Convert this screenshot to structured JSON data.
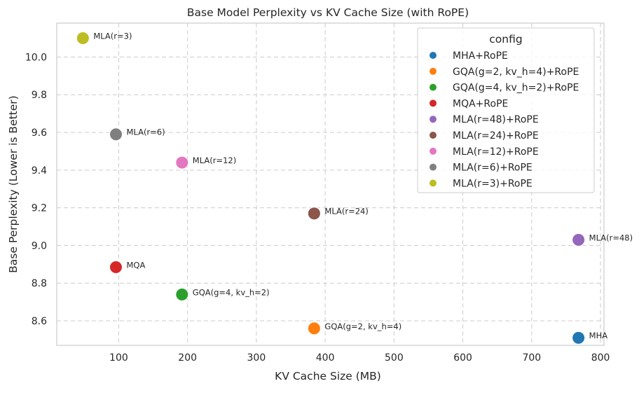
{
  "chart_data": {
    "type": "scatter",
    "title": "Base Model Perplexity vs KV Cache Size (with RoPE)",
    "xlabel": "KV Cache Size (MB)",
    "ylabel": "Base Perplexity (Lower is Better)",
    "xlim": [
      10,
      805
    ],
    "ylim": [
      8.47,
      10.18
    ],
    "xticks": [
      100,
      200,
      300,
      400,
      500,
      600,
      700,
      800
    ],
    "yticks": [
      8.6,
      8.8,
      9.0,
      9.2,
      9.4,
      9.6,
      9.8,
      10.0
    ],
    "xtick_labels": [
      "100",
      "200",
      "300",
      "400",
      "500",
      "600",
      "700",
      "800"
    ],
    "ytick_labels": [
      "8.6",
      "8.8",
      "9.0",
      "9.2",
      "9.4",
      "9.6",
      "9.8",
      "10.0"
    ],
    "grid": true,
    "legend_title": "config",
    "legend_placement": "top-right",
    "series": [
      {
        "name": "MHA+RoPE",
        "color": "#1f77b4",
        "x": 768,
        "y": 8.51,
        "label": "MHA"
      },
      {
        "name": "GQA(g=2, kv_h=4)+RoPE",
        "color": "#ff7f0e",
        "x": 384,
        "y": 8.56,
        "label": "GQA(g=2, kv_h=4)"
      },
      {
        "name": "GQA(g=4, kv_h=2)+RoPE",
        "color": "#2ca02c",
        "x": 192,
        "y": 8.74,
        "label": "GQA(g=4, kv_h=2)"
      },
      {
        "name": "MQA+RoPE",
        "color": "#d62728",
        "x": 96,
        "y": 8.885,
        "label": "MQA"
      },
      {
        "name": "MLA(r=48)+RoPE",
        "color": "#9467bd",
        "x": 768,
        "y": 9.03,
        "label": "MLA(r=48)"
      },
      {
        "name": "MLA(r=24)+RoPE",
        "color": "#8c564b",
        "x": 384,
        "y": 9.17,
        "label": "MLA(r=24)"
      },
      {
        "name": "MLA(r=12)+RoPE",
        "color": "#e377c2",
        "x": 192,
        "y": 9.44,
        "label": "MLA(r=12)"
      },
      {
        "name": "MLA(r=6)+RoPE",
        "color": "#7f7f7f",
        "x": 96,
        "y": 9.59,
        "label": "MLA(r=6)"
      },
      {
        "name": "MLA(r=3)+RoPE",
        "color": "#bcbd22",
        "x": 48,
        "y": 10.1,
        "label": "MLA(r=3)"
      }
    ]
  }
}
